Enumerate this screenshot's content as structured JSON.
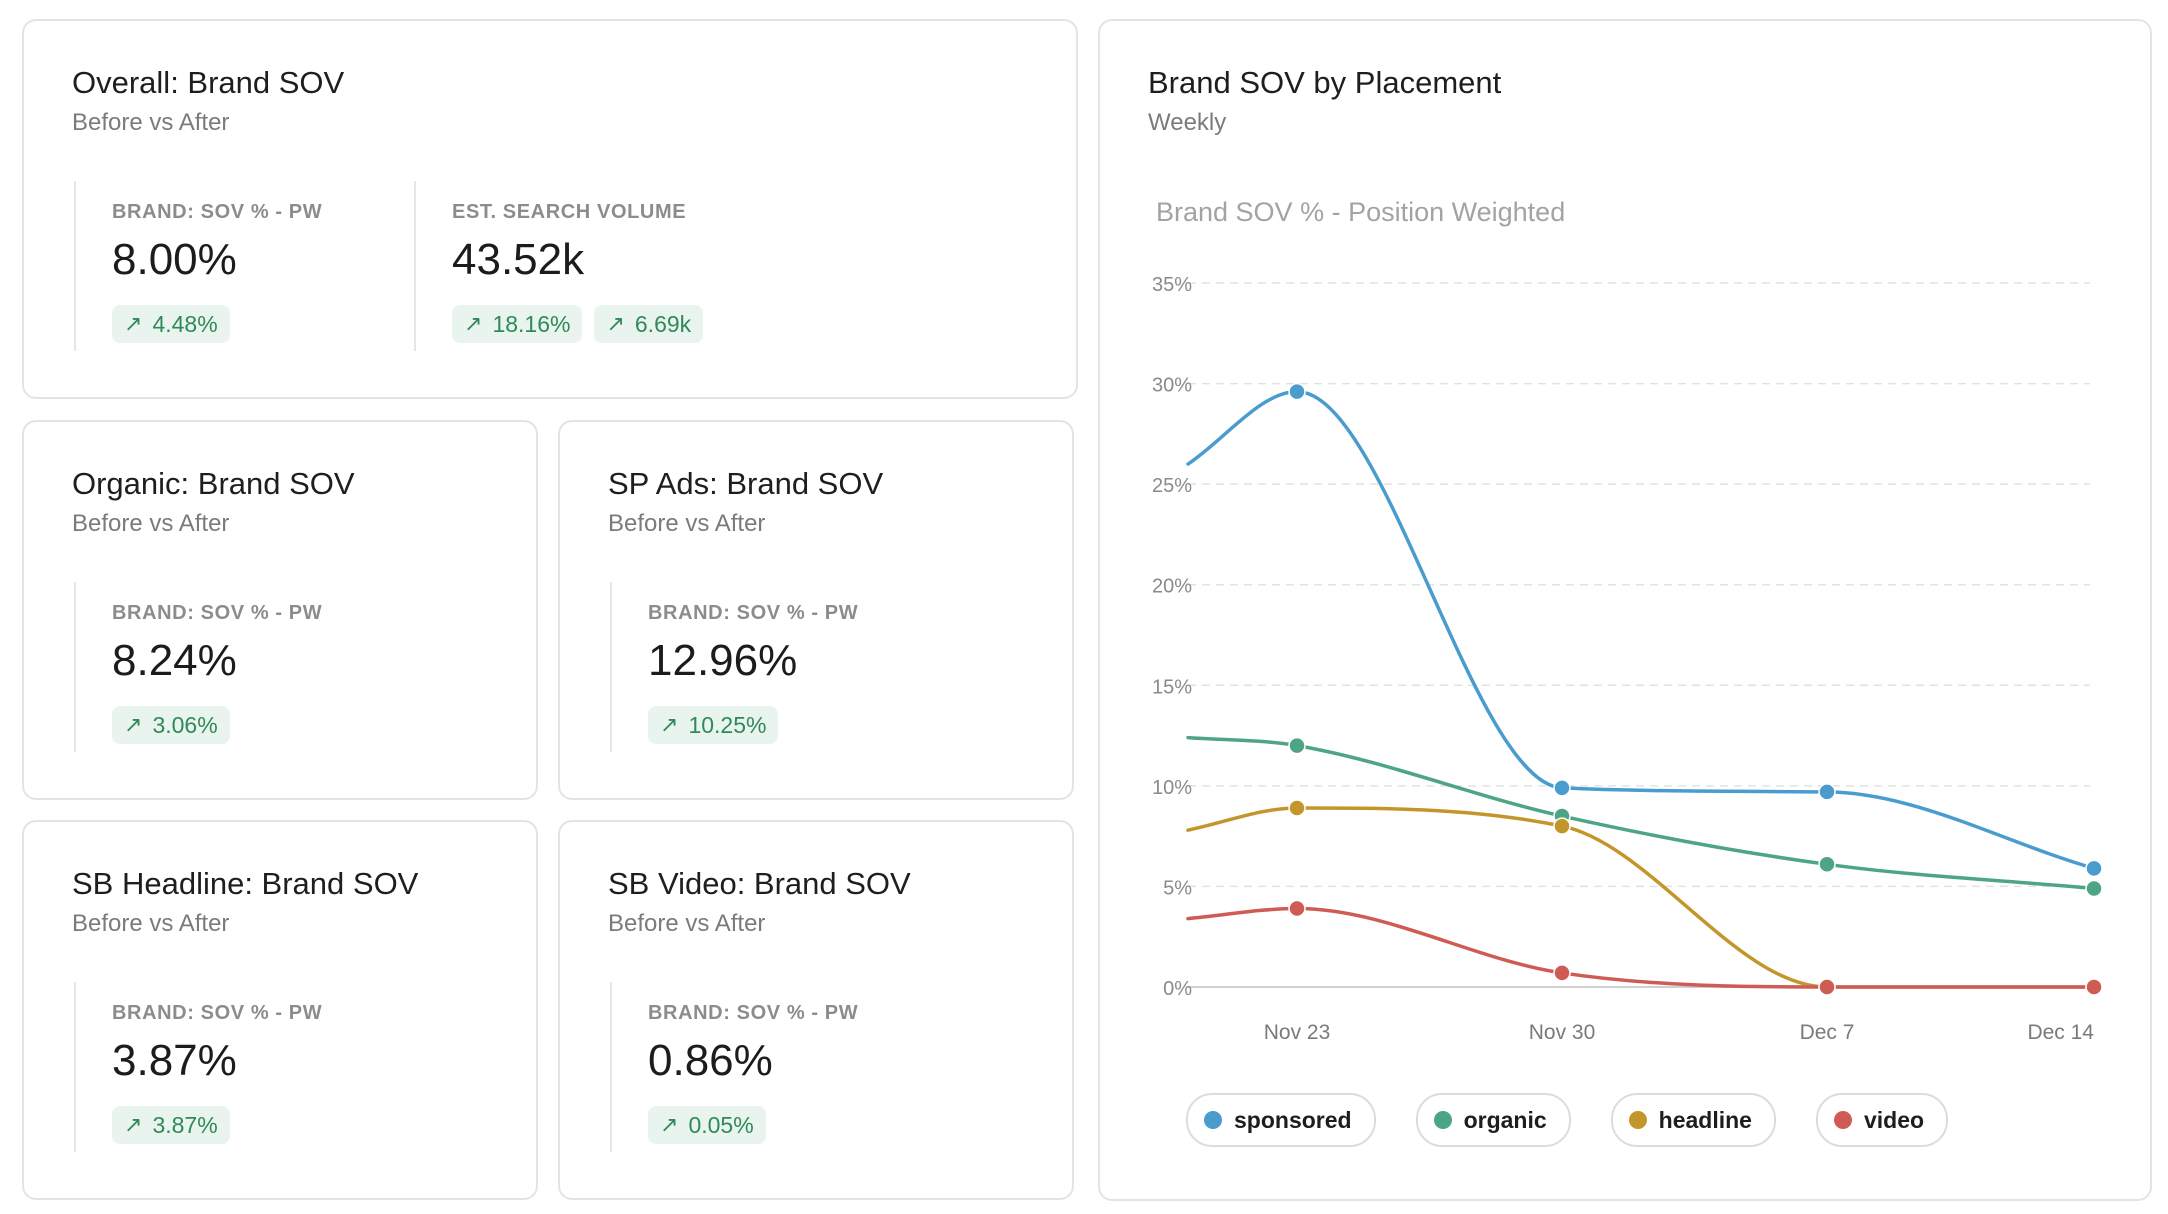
{
  "cards": [
    {
      "title": "Overall: Brand SOV",
      "subtitle": "Before vs After",
      "metrics": [
        {
          "label": "BRAND: SOV % - PW",
          "value": "8.00%",
          "chips": [
            "4.48%"
          ]
        },
        {
          "label": "EST. SEARCH VOLUME",
          "value": "43.52k",
          "chips": [
            "18.16%",
            "6.69k"
          ]
        }
      ]
    },
    {
      "title": "Organic: Brand SOV",
      "subtitle": "Before vs After",
      "metrics": [
        {
          "label": "BRAND: SOV % - PW",
          "value": "8.24%",
          "chips": [
            "3.06%"
          ]
        }
      ]
    },
    {
      "title": "SP Ads: Brand SOV",
      "subtitle": "Before vs After",
      "metrics": [
        {
          "label": "BRAND: SOV % - PW",
          "value": "12.96%",
          "chips": [
            "10.25%"
          ]
        }
      ]
    },
    {
      "title": "SB Headline: Brand SOV",
      "subtitle": "Before vs After",
      "metrics": [
        {
          "label": "BRAND: SOV % - PW",
          "value": "3.87%",
          "chips": [
            "3.87%"
          ]
        }
      ]
    },
    {
      "title": "SB Video: Brand SOV",
      "subtitle": "Before vs After",
      "metrics": [
        {
          "label": "BRAND: SOV % - PW",
          "value": "0.86%",
          "chips": [
            "0.05%"
          ]
        }
      ]
    }
  ],
  "chip_icon": "arrow-up-right-icon",
  "chip_color": "#2f8a58",
  "chip_bg": "#eaf4ee",
  "chart_card": {
    "title": "Brand SOV by Placement",
    "subtitle": "Weekly"
  },
  "chart_data": {
    "type": "line",
    "title": "Brand SOV % - Position Weighted",
    "x": [
      "Nov 23",
      "Nov 30",
      "Dec 7",
      "Dec 14"
    ],
    "xlabel": "",
    "ylabel": "",
    "ylim": [
      0,
      35
    ],
    "yticks": [
      "0%",
      "5%",
      "10%",
      "15%",
      "20%",
      "25%",
      "30%",
      "35%"
    ],
    "grid": true,
    "legend_position": "bottom",
    "series": [
      {
        "name": "sponsored",
        "color": "#4a9ccf",
        "values": [
          29.6,
          9.9,
          9.7,
          5.9
        ],
        "start_value": 26.0
      },
      {
        "name": "organic",
        "color": "#4da584",
        "values": [
          12.0,
          8.5,
          6.1,
          4.9
        ],
        "start_value": 12.4
      },
      {
        "name": "headline",
        "color": "#c3962b",
        "values": [
          8.9,
          8.0,
          0.0,
          0.0
        ],
        "start_value": 7.8
      },
      {
        "name": "video",
        "color": "#cf5b55",
        "values": [
          3.9,
          0.7,
          0.0,
          0.0
        ],
        "start_value": 3.4
      }
    ]
  }
}
